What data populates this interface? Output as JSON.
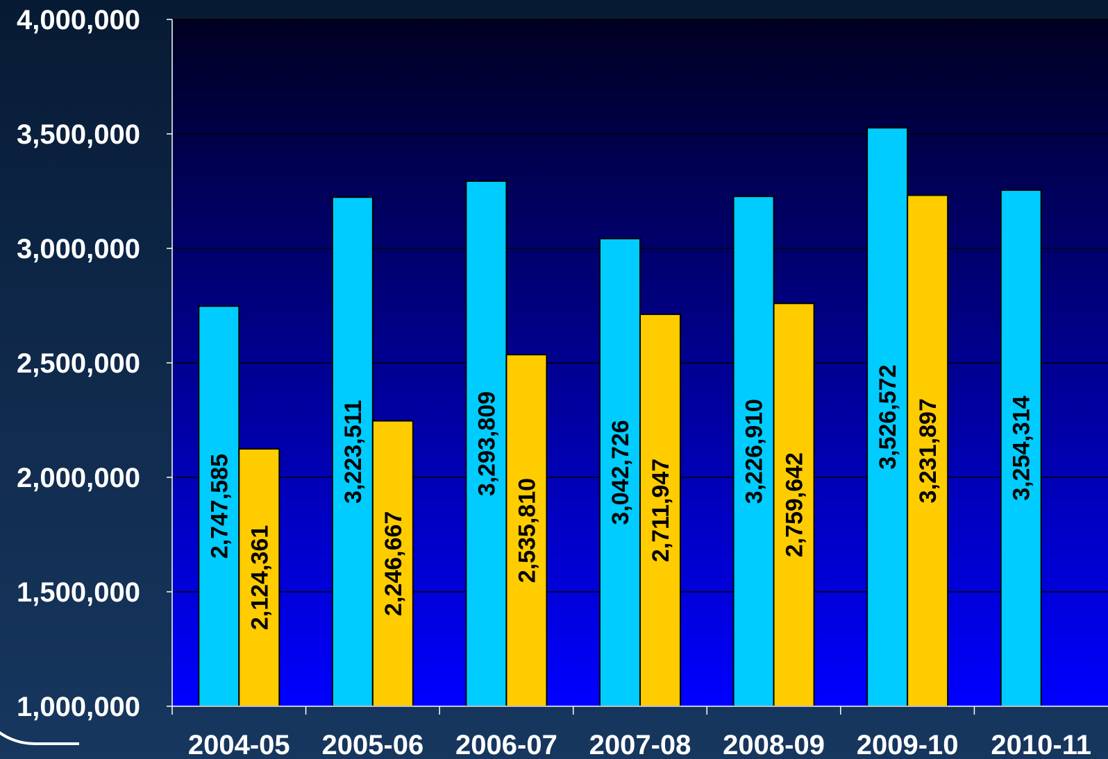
{
  "chart_data": {
    "type": "bar",
    "categories": [
      "2004-05",
      "2005-06",
      "2006-07",
      "2007-08",
      "2008-09",
      "2009-10",
      "2010-11"
    ],
    "series": [
      {
        "values": [
          2747585,
          3223511,
          3293809,
          3042726,
          3226910,
          3526572,
          3254314
        ],
        "labels": [
          "2,747,585",
          "3,223,511",
          "3,293,809",
          "3,042,726",
          "3,226,910",
          "3,526,572",
          "3,254,314"
        ],
        "color": "#00ccff"
      },
      {
        "values": [
          2124361,
          2246667,
          2535810,
          2711947,
          2759642,
          3231897,
          null
        ],
        "labels": [
          "2,124,361",
          "2,246,667",
          "2,535,810",
          "2,711,947",
          "2,759,642",
          "3,231,897",
          ""
        ],
        "color": "#ffcc00"
      }
    ],
    "yticks": [
      "1,000,000",
      "1,500,000",
      "2,000,000",
      "2,500,000",
      "3,000,000",
      "3,500,000",
      "4,000,000"
    ],
    "ylim": [
      1000000,
      4000000
    ],
    "ystep": 500000,
    "grid": true,
    "plot_background": [
      "#000022",
      "#0000ff"
    ],
    "title": "",
    "xlabel": "",
    "ylabel": ""
  }
}
